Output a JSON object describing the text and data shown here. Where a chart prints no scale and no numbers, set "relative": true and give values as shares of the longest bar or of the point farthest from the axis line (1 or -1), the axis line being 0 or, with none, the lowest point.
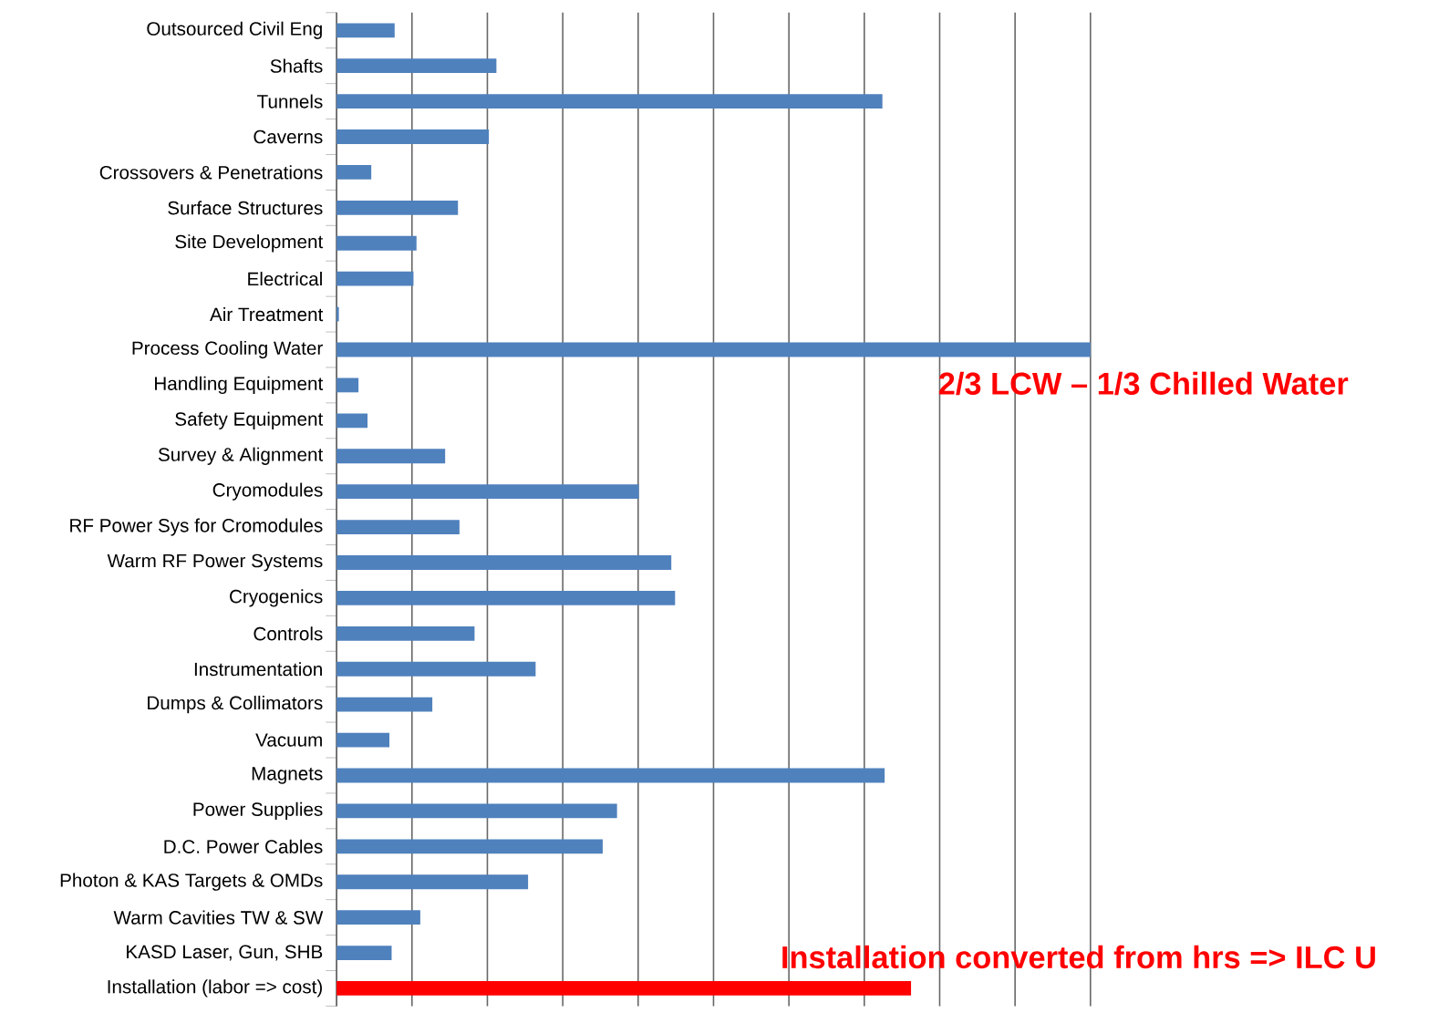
{
  "chart_data": {
    "type": "bar",
    "orientation": "horizontal",
    "relative": true,
    "grid": "x",
    "categories": [
      "Outsourced Civil Eng",
      "Shafts",
      "Tunnels",
      "Caverns",
      "Crossovers & Penetrations",
      "Surface Structures",
      "Site Development",
      "Electrical",
      "Air Treatment",
      "Process Cooling Water",
      "Handling Equipment",
      "Safety Equipment",
      "Survey & Alignment",
      "Cryomodules",
      "RF Power Sys for Cromodules",
      "Warm RF Power Systems",
      "Cryogenics",
      "Controls",
      "Instrumentation",
      "Dumps & Collimators",
      "Vacuum",
      "Magnets",
      "Power Supplies",
      "D.C. Power Cables",
      "Photon & KAS Targets & OMDs",
      "Warm Cavities TW & SW",
      "KASD Laser, Gun, SHB",
      "Installation (labor => cost)"
    ],
    "values": [
      0.077,
      0.212,
      0.724,
      0.202,
      0.046,
      0.161,
      0.106,
      0.102,
      0.003,
      1.0,
      0.029,
      0.041,
      0.144,
      0.401,
      0.163,
      0.444,
      0.449,
      0.183,
      0.264,
      0.127,
      0.07,
      0.727,
      0.372,
      0.353,
      0.254,
      0.111,
      0.073,
      0.762
    ],
    "colors": [
      "#4f81bd",
      "#4f81bd",
      "#4f81bd",
      "#4f81bd",
      "#4f81bd",
      "#4f81bd",
      "#4f81bd",
      "#4f81bd",
      "#4f81bd",
      "#4f81bd",
      "#4f81bd",
      "#4f81bd",
      "#4f81bd",
      "#4f81bd",
      "#4f81bd",
      "#4f81bd",
      "#4f81bd",
      "#4f81bd",
      "#4f81bd",
      "#4f81bd",
      "#4f81bd",
      "#4f81bd",
      "#4f81bd",
      "#4f81bd",
      "#4f81bd",
      "#4f81bd",
      "#4f81bd",
      "#ff0000"
    ],
    "annotations": [
      "2/3 LCW – 1/3 Chilled Water",
      "Installation converted from hrs => ILC U"
    ]
  }
}
